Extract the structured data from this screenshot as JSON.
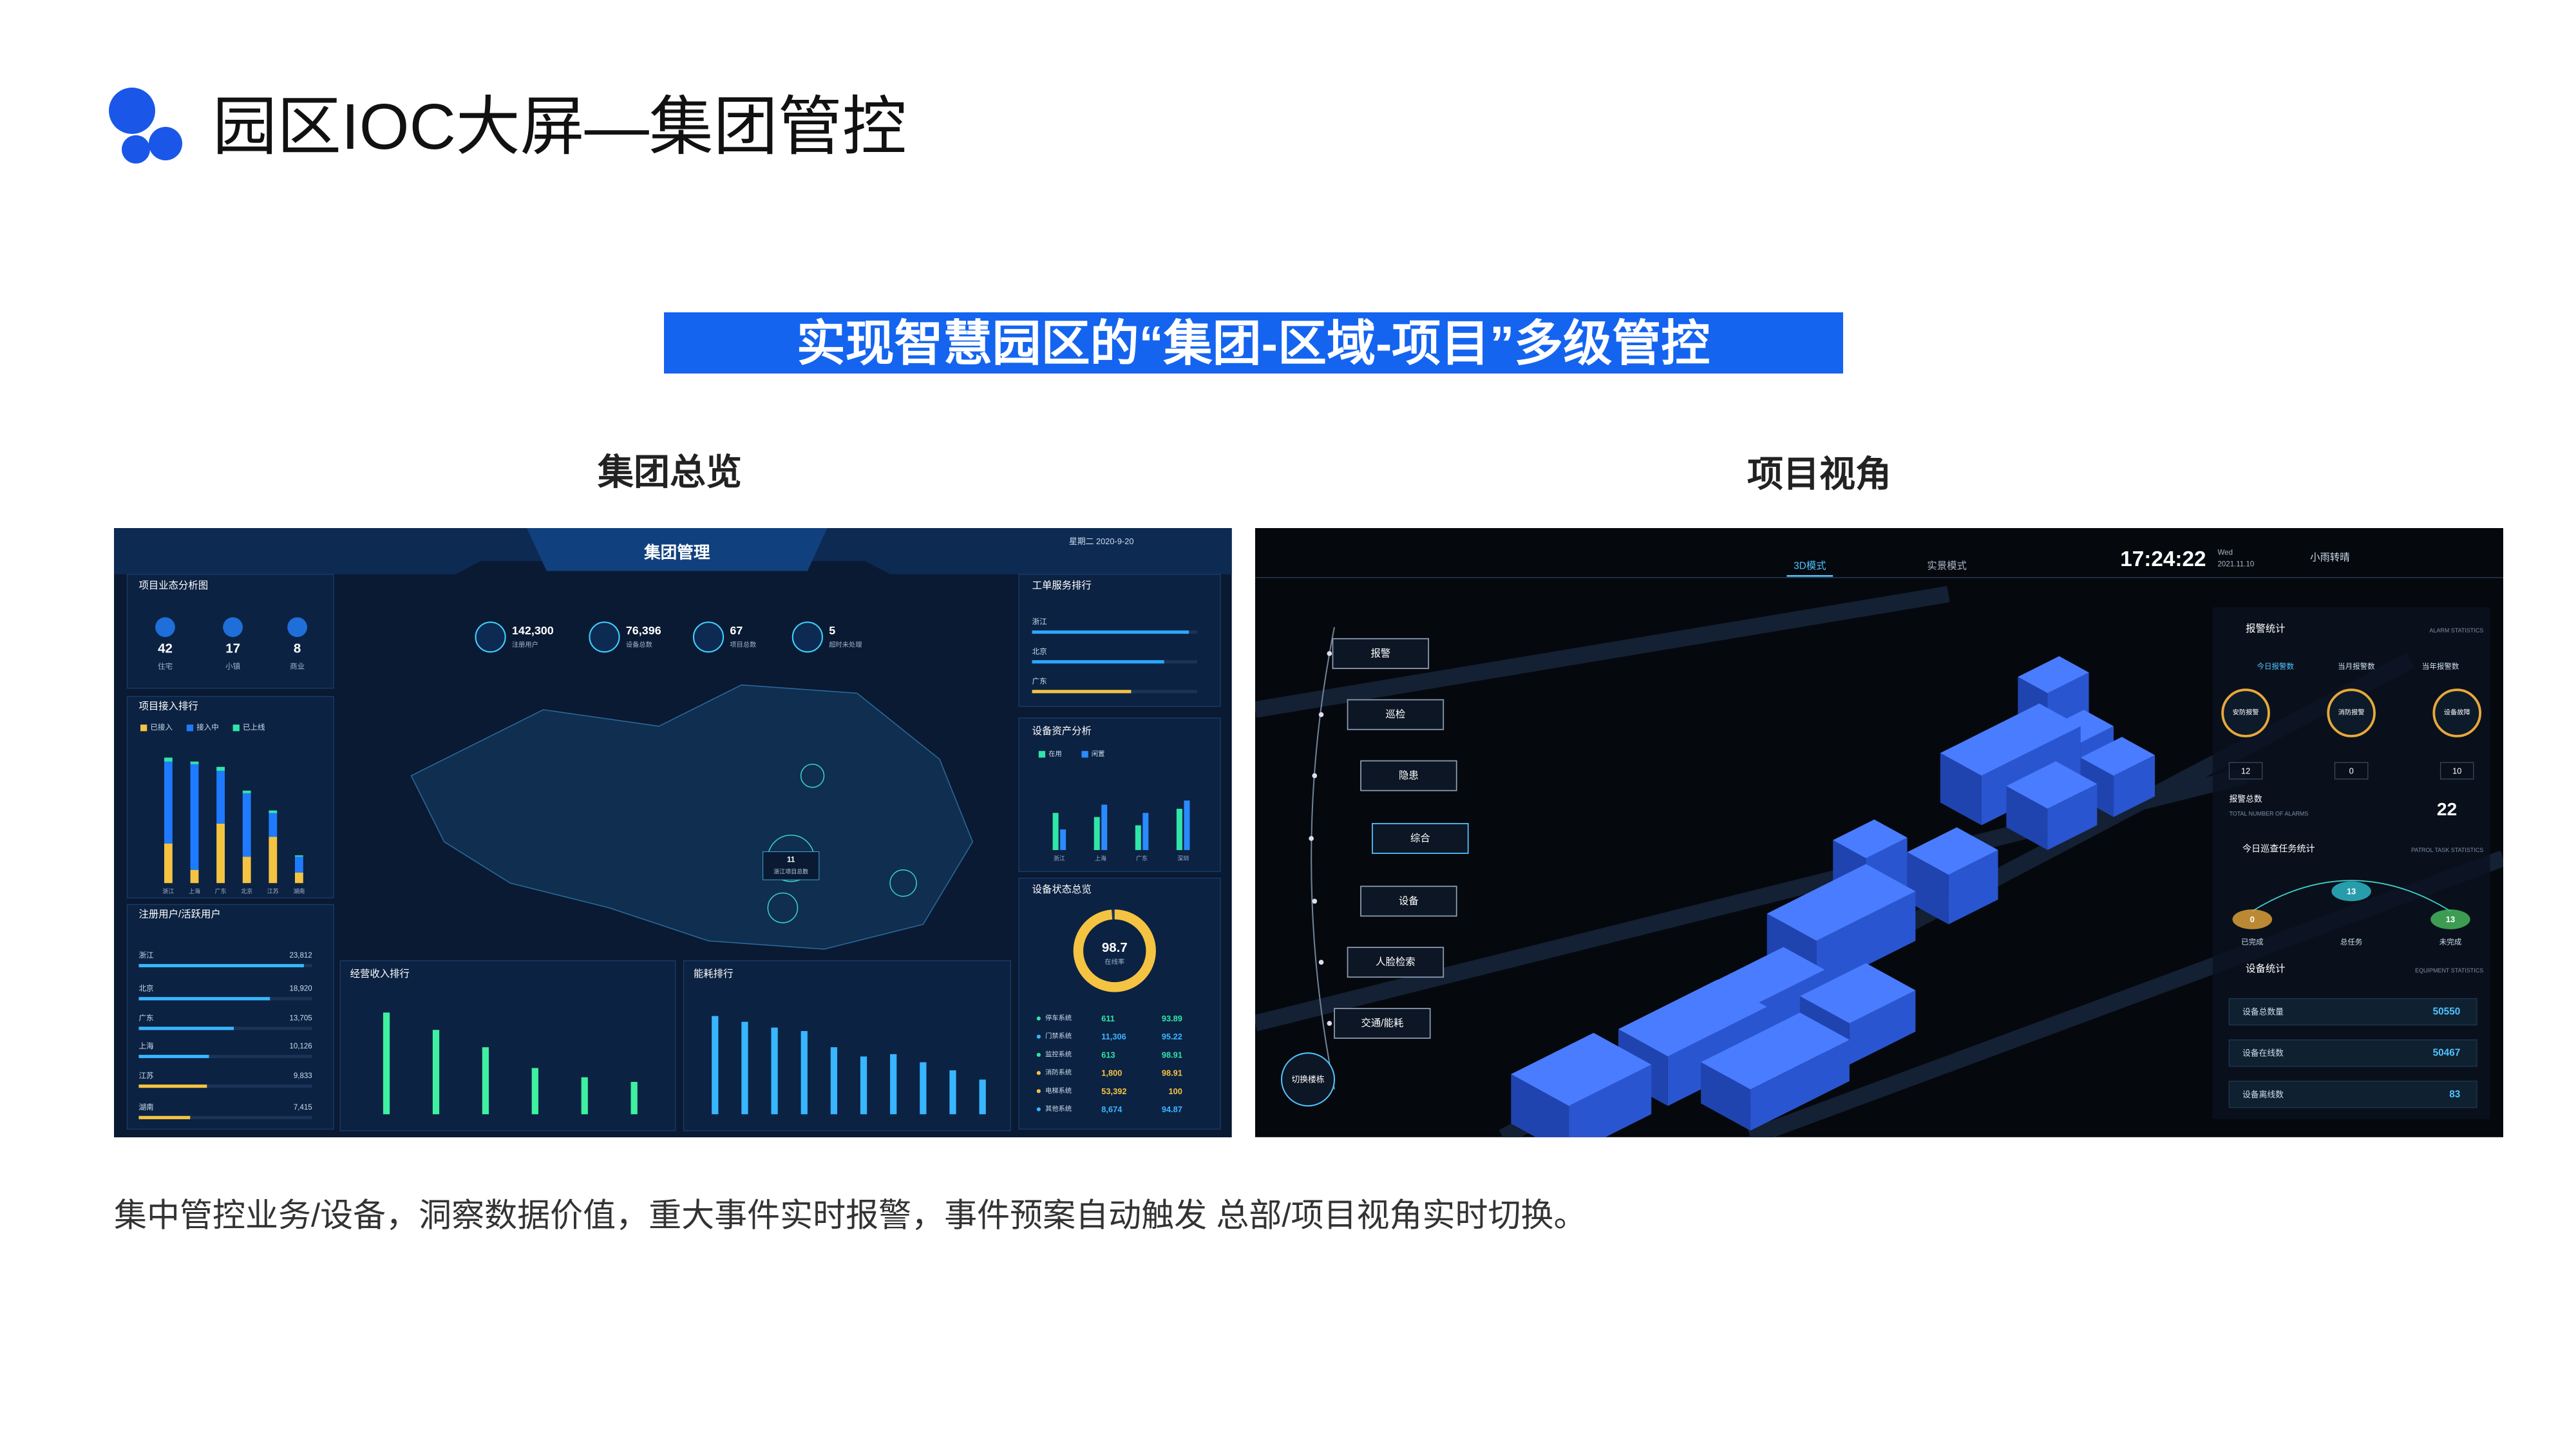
{
  "header": {
    "title": "园区IOC大屏—集团管控"
  },
  "banner": {
    "text": "实现智慧园区的“集团-区域-项目”多级管控"
  },
  "left": {
    "label": "集团总览",
    "screen": {
      "title": "集团管理",
      "date": "星期二 2020-9-20",
      "business": {
        "title": "项目业态分析图",
        "items": [
          {
            "value": "42",
            "label": "住宅"
          },
          {
            "value": "17",
            "label": "小镇"
          },
          {
            "value": "8",
            "label": "商业"
          }
        ]
      },
      "kpis": [
        {
          "value": "142,300",
          "label": "注册用户"
        },
        {
          "value": "76,396",
          "label": "设备总数"
        },
        {
          "value": "67",
          "label": "项目总数"
        },
        {
          "value": "5",
          "label": "超时未处理"
        }
      ],
      "map_label": {
        "value": "11",
        "label": "浙江项目总数"
      },
      "access": {
        "type": "bar",
        "title": "项目接入排行",
        "categories": [
          "浙江",
          "上海",
          "广东",
          "北京",
          "江苏",
          "湖南"
        ],
        "ylim": [
          0,
          100
        ],
        "series": [
          {
            "name": "已接入",
            "color": "#f5c342",
            "values": [
              30,
              10,
              45,
              20,
              35,
              8
            ]
          },
          {
            "name": "接入中",
            "color": "#1e7bff",
            "values": [
              62,
              80,
              40,
              48,
              18,
              12
            ]
          },
          {
            "name": "已上线",
            "color": "#2ee6a8",
            "values": [
              3,
              2,
              3,
              2,
              2,
              1
            ]
          }
        ]
      },
      "users": {
        "type": "bar",
        "title": "注册用户/活跃用户",
        "categories": [
          "浙江",
          "北京",
          "广东",
          "上海",
          "江苏",
          "湖南"
        ],
        "xlim": [
          0,
          25000
        ],
        "values": [
          23812,
          18920,
          13705,
          10126,
          9833,
          7415
        ],
        "value_labels": [
          "23,812",
          "18,920",
          "13,705",
          "10,126",
          "9,833",
          "7,415"
        ]
      },
      "revenue": {
        "type": "bar",
        "title": "经营收入排行",
        "categories": [
          null,
          null,
          null,
          null,
          null,
          null
        ],
        "ylim": [
          0,
          100
        ],
        "values": [
          88,
          73,
          58,
          40,
          32,
          28
        ],
        "color": "#3ef0a0"
      },
      "energy": {
        "type": "bar",
        "title": "能耗排行",
        "categories": [
          null,
          null,
          null,
          null,
          null,
          null,
          null,
          null,
          null,
          null
        ],
        "ylim": [
          0,
          100
        ],
        "values": [
          85,
          80,
          75,
          72,
          58,
          50,
          52,
          45,
          38,
          30
        ],
        "color": "#38b6ff"
      },
      "orders": {
        "type": "bar",
        "title": "工单服务排行",
        "categories": [
          "浙江",
          "北京",
          "广东"
        ],
        "xlim": [
          0,
          100
        ],
        "values": [
          95,
          80,
          60
        ]
      },
      "assets": {
        "type": "bar",
        "title": "设备资产分析",
        "categories": [
          "浙江",
          "上海",
          "广东",
          "深圳"
        ],
        "ylim": [
          0,
          100
        ],
        "series": [
          {
            "name": "在用",
            "color": "#2ee6a8",
            "values": [
              45,
              40,
              30,
              50
            ]
          },
          {
            "name": "闲置",
            "color": "#2a8bff",
            "values": [
              25,
              55,
              45,
              60
            ]
          }
        ]
      },
      "status": {
        "title": "设备状态总览",
        "rate": 98.7,
        "rate_label": "在线率",
        "rows": [
          {
            "name": "停车系统",
            "count": "611",
            "pct": "93.89"
          },
          {
            "name": "门禁系统",
            "count": "11,306",
            "pct": "95.22"
          },
          {
            "name": "监控系统",
            "count": "613",
            "pct": "98.91"
          },
          {
            "name": "消防系统",
            "count": "1,800",
            "pct": "98.91"
          },
          {
            "name": "电梯系统",
            "count": "53,392",
            "pct": "100"
          },
          {
            "name": "其他系统",
            "count": "8,674",
            "pct": "94.87"
          }
        ]
      }
    }
  },
  "right": {
    "label": "项目视角",
    "screen": {
      "tabs": [
        "3D模式",
        "实景模式"
      ],
      "time": "17:24:22",
      "day": "Wed",
      "date": "2021.11.10",
      "weather": "小雨转晴",
      "menu": [
        "报警",
        "巡检",
        "隐患",
        "综合",
        "设备",
        "人脸检索",
        "交通/能耗"
      ],
      "switch": "切换楼栋",
      "alarm": {
        "title": "报警统计",
        "title_en": "ALARM STATISTICS",
        "tabs": [
          "今日报警数",
          "当月报警数",
          "当年报警数"
        ],
        "items": [
          {
            "label": "安防报警",
            "value": "12"
          },
          {
            "label": "消防报警",
            "value": "0"
          },
          {
            "label": "设备故障",
            "value": "10"
          }
        ]
      },
      "total": {
        "label": "报警总数",
        "label_en": "TOTAL NUMBER OF ALARMS",
        "value": "22"
      },
      "patrol": {
        "title": "今日巡查任务统计",
        "title_en": "PATROL TASK STATISTICS",
        "items": [
          {
            "value": "0",
            "label": "已完成"
          },
          {
            "value": "13",
            "label": "总任务"
          },
          {
            "value": "13",
            "label": "未完成"
          }
        ]
      },
      "equipment": {
        "title": "设备统计",
        "title_en": "EQUIPMENT STATISTICS",
        "rows": [
          {
            "label": "设备总数量",
            "value": "50550"
          },
          {
            "label": "设备在线数",
            "value": "50467"
          },
          {
            "label": "设备离线数",
            "value": "83"
          }
        ]
      }
    }
  },
  "caption": "集中管控业务/设备，洞察数据价值，重大事件实时报警，事件预案自动触发 总部/项目视角实时切换。"
}
